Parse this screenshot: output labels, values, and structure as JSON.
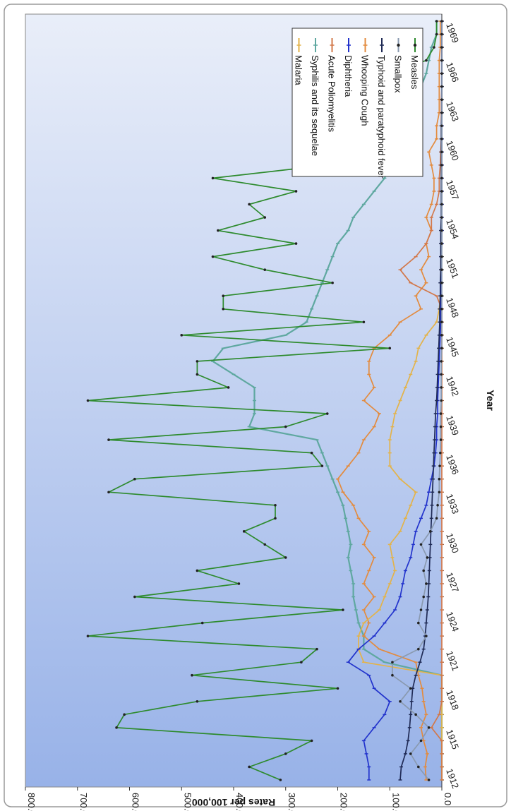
{
  "chart_data": {
    "type": "line",
    "orientation": "rotated-90-clockwise",
    "title": "",
    "xlabel": "Year",
    "ylabel": "Rates per 100,000",
    "ylim": [
      0,
      800
    ],
    "y_ticks": [
      "0.0",
      "100.0",
      "200.0",
      "300.0",
      "400.0",
      "500.0",
      "600.0",
      "700.0",
      "800.0"
    ],
    "x_tick_labels": [
      "1912",
      "1915",
      "1918",
      "1921",
      "1924",
      "1927",
      "1930",
      "1933",
      "1936",
      "1939",
      "1942",
      "1945",
      "1948",
      "1951",
      "1954",
      "1957",
      "1960",
      "1963",
      "1966",
      "1969"
    ],
    "grid": false,
    "legend_position": "top-right",
    "x": [
      1912,
      1913,
      1914,
      1915,
      1916,
      1917,
      1918,
      1919,
      1920,
      1921,
      1922,
      1923,
      1924,
      1925,
      1926,
      1927,
      1928,
      1929,
      1930,
      1931,
      1932,
      1933,
      1934,
      1935,
      1936,
      1937,
      1938,
      1939,
      1940,
      1941,
      1942,
      1943,
      1944,
      1945,
      1946,
      1947,
      1948,
      1949,
      1950,
      1951,
      1952,
      1953,
      1954,
      1955,
      1956,
      1957,
      1958,
      1959,
      1960,
      1961,
      1962,
      1963,
      1964,
      1965,
      1966,
      1967,
      1968,
      1969,
      1970
    ],
    "series": [
      {
        "name": "Measles",
        "color": "#2e8b2e",
        "marker": "dot",
        "values": [
          310,
          370,
          300,
          250,
          625,
          610,
          470,
          200,
          480,
          270,
          240,
          680,
          460,
          190,
          590,
          390,
          470,
          300,
          340,
          380,
          320,
          320,
          640,
          590,
          230,
          250,
          640,
          300,
          220,
          680,
          410,
          470,
          470,
          100,
          500,
          150,
          420,
          420,
          210,
          340,
          440,
          280,
          430,
          340,
          370,
          280,
          440,
          220,
          230,
          240,
          260,
          200,
          240,
          130,
          100,
          30,
          15,
          10,
          10
        ]
      },
      {
        "name": "Smallpox",
        "color": "#8a9ab0",
        "marker": "dot",
        "values": [
          25,
          45,
          60,
          40,
          25,
          50,
          80,
          60,
          95,
          95,
          45,
          30,
          45,
          40,
          35,
          30,
          35,
          28,
          40,
          22,
          10,
          8,
          5,
          5,
          4,
          3,
          2,
          2,
          2,
          1,
          1,
          1,
          1,
          0,
          0,
          0,
          0,
          0,
          0,
          0,
          0,
          0,
          0,
          0,
          0,
          0,
          0,
          0,
          0,
          0,
          0,
          0,
          0,
          0,
          0,
          0,
          0,
          0,
          0
        ]
      },
      {
        "name": "Typhoid and paratyphoid fever",
        "color": "#1f2a55",
        "marker": "dash",
        "values": [
          80,
          78,
          70,
          65,
          62,
          60,
          58,
          56,
          50,
          42,
          35,
          32,
          30,
          28,
          26,
          25,
          24,
          23,
          22,
          21,
          20,
          19,
          18,
          17,
          16,
          15,
          14,
          13,
          12,
          10,
          9,
          8,
          7,
          6,
          5,
          4,
          4,
          3,
          3,
          2,
          2,
          2,
          2,
          1,
          1,
          1,
          1,
          1,
          1,
          1,
          1,
          0,
          0,
          0,
          0,
          0,
          0,
          0,
          0
        ]
      },
      {
        "name": "Whooping Cough",
        "color": "#e38b3e",
        "marker": "dash",
        "values": [
          30,
          32,
          28,
          35,
          40,
          30,
          35,
          38,
          45,
          50,
          120,
          150,
          140,
          150,
          130,
          150,
          140,
          130,
          150,
          140,
          160,
          170,
          190,
          200,
          180,
          160,
          150,
          130,
          120,
          150,
          130,
          140,
          140,
          130,
          100,
          80,
          40,
          50,
          30,
          40,
          25,
          30,
          20,
          30,
          20,
          15,
          15,
          20,
          25,
          10,
          10,
          5,
          5,
          5,
          5,
          5,
          3,
          3,
          3
        ]
      },
      {
        "name": "Diphtheria",
        "color": "#2233cc",
        "marker": "dash",
        "values": [
          140,
          140,
          145,
          150,
          130,
          110,
          100,
          130,
          140,
          180,
          160,
          130,
          110,
          90,
          80,
          75,
          70,
          60,
          55,
          50,
          40,
          30,
          25,
          20,
          15,
          12,
          10,
          10,
          8,
          8,
          7,
          6,
          5,
          4,
          3,
          2,
          2,
          1,
          1,
          1,
          1,
          0,
          0,
          0,
          0,
          0,
          0,
          0,
          0,
          0,
          0,
          0,
          0,
          0,
          0,
          0,
          0,
          0,
          0
        ]
      },
      {
        "name": "Acute Poliomyelitis",
        "color": "#d2784a",
        "marker": "dash",
        "values": [
          0,
          0,
          0,
          0,
          20,
          5,
          0,
          0,
          0,
          0,
          0,
          0,
          0,
          0,
          0,
          0,
          0,
          0,
          0,
          0,
          0,
          0,
          0,
          0,
          0,
          0,
          0,
          0,
          0,
          0,
          0,
          0,
          0,
          0,
          0,
          0,
          0,
          10,
          60,
          80,
          50,
          30,
          20,
          20,
          10,
          5,
          5,
          3,
          2,
          1,
          1,
          1,
          1,
          0,
          0,
          0,
          0,
          0,
          0
        ]
      },
      {
        "name": "Syphilis and its sequelae",
        "color": "#5fa8a0",
        "marker": "dash",
        "values": [
          0,
          0,
          0,
          0,
          0,
          0,
          0,
          0,
          0,
          110,
          150,
          150,
          160,
          165,
          170,
          170,
          175,
          180,
          175,
          180,
          185,
          190,
          200,
          210,
          220,
          230,
          240,
          370,
          360,
          360,
          360,
          400,
          440,
          420,
          300,
          260,
          250,
          240,
          230,
          220,
          210,
          200,
          180,
          170,
          150,
          130,
          110,
          100,
          90,
          80,
          70,
          60,
          50,
          40,
          30,
          25,
          20,
          10,
          10
        ]
      },
      {
        "name": "Malaria",
        "color": "#e3b34a",
        "marker": "dash",
        "values": [
          0,
          0,
          0,
          0,
          0,
          0,
          0,
          0,
          0,
          150,
          160,
          160,
          150,
          120,
          110,
          100,
          90,
          95,
          100,
          80,
          70,
          60,
          50,
          80,
          100,
          100,
          100,
          95,
          90,
          80,
          70,
          60,
          50,
          45,
          30,
          10,
          5,
          3,
          2,
          2,
          1,
          1,
          1,
          1,
          0,
          0,
          0,
          0,
          0,
          0,
          0,
          0,
          0,
          0,
          0,
          0,
          0,
          0,
          0
        ]
      }
    ]
  }
}
